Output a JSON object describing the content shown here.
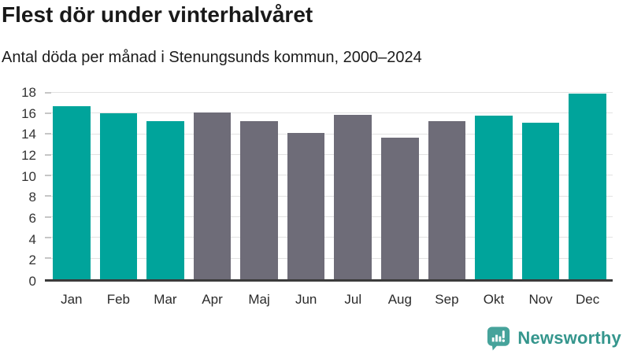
{
  "header": {
    "title": "Flest dör under vinterhalvåret",
    "subtitle": "Antal döda per månad i Stenungsunds kommun, 2000–2024"
  },
  "chart_data": {
    "type": "bar",
    "title": "Flest dör under vinterhalvåret",
    "subtitle": "Antal döda per månad i Stenungsunds kommun, 2000–2024",
    "categories": [
      "Jan",
      "Feb",
      "Mar",
      "Apr",
      "Maj",
      "Jun",
      "Jul",
      "Aug",
      "Sep",
      "Okt",
      "Nov",
      "Dec"
    ],
    "values": [
      16.7,
      16.0,
      15.3,
      16.1,
      15.3,
      14.1,
      15.9,
      13.7,
      15.3,
      15.8,
      15.1,
      17.9
    ],
    "highlighted": [
      true,
      true,
      true,
      false,
      false,
      false,
      false,
      false,
      false,
      true,
      true,
      true
    ],
    "xlabel": "",
    "ylabel": "",
    "ylim": [
      0,
      18
    ],
    "yticks": [
      0,
      2,
      4,
      6,
      8,
      10,
      12,
      14,
      16,
      18
    ],
    "grid": "horizontal",
    "legend": "none",
    "colors": {
      "highlight": "#00a49b",
      "muted": "#6e6c78",
      "gridline": "#e2e2e2",
      "axis_line": "#3b3b3b",
      "tick_label": "#333333"
    }
  },
  "footer": {
    "brand": "Newsworthy",
    "logo_icon": "newsworthy-speech-bubble-bar-chart",
    "brand_color": "#35968d",
    "logo_bg_color": "#46a39b"
  }
}
